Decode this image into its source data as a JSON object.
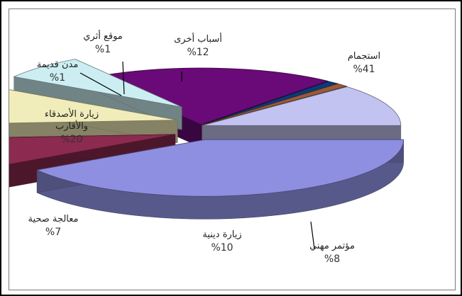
{
  "chart_data": {
    "type": "pie",
    "title": "",
    "exploded": true,
    "three_d": true,
    "slices": [
      {
        "label": "استجمام",
        "value": 41,
        "value_text": "%41",
        "color": "#8e8fe0"
      },
      {
        "label": "مؤتمر مهني",
        "value": 8,
        "value_text": "%8",
        "color": "#8c2a4f"
      },
      {
        "label": "زيارة دينية",
        "value": 10,
        "value_text": "%10",
        "color": "#f1edba"
      },
      {
        "label": "معالجة صحية",
        "value": 7,
        "value_text": "%7",
        "color": "#cceef2"
      },
      {
        "label": "زيارة الأصدقاء والأقارب",
        "value": 20,
        "value_text": "%20",
        "color": "#6a0a78"
      },
      {
        "label": "مدن قديمة",
        "value": 1,
        "value_text": "%1",
        "color": "#0c3a78"
      },
      {
        "label": "موقع أثري",
        "value": 1,
        "value_text": "%1",
        "color": "#9a5a3a"
      },
      {
        "label": "أسباب أخرى",
        "value": 12,
        "value_text": "%12",
        "color": "#c2c3f0"
      }
    ]
  }
}
